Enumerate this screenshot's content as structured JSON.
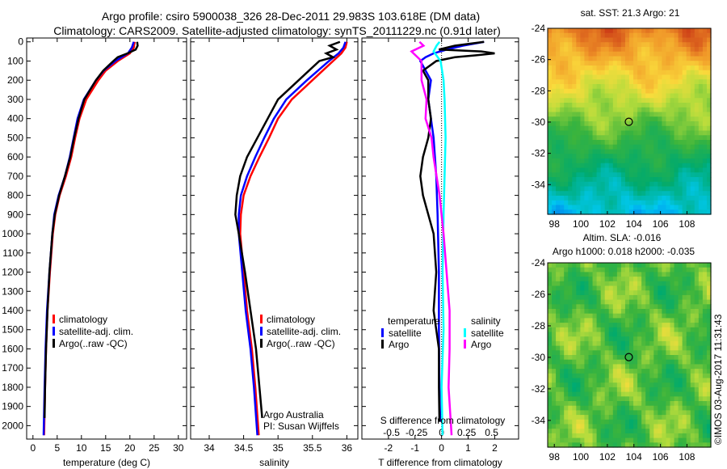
{
  "title_line1": "Argo profile: csiro 5900038_326 28-Dec-2011 29.983S 103.618E (DM data)",
  "title_line2": "Climatology: CARS2009. Satellite-adjusted climatology: synTS_20111229.nc (0.91d later)",
  "colors": {
    "climatology": "#ff0000",
    "satellite": "#0000ff",
    "argo": "#000000",
    "sal_satellite": "#00ffff",
    "sal_argo": "#ff00ff"
  },
  "chart_data": [
    {
      "type": "line",
      "id": "temperature",
      "xlabel": "temperature (deg C)",
      "xlim": [
        -1.3,
        31.7
      ],
      "ylim": [
        2070,
        -20
      ],
      "xticks": [
        "0",
        "5",
        "10",
        "15",
        "20",
        "25",
        "30"
      ],
      "xtick_values": [
        0,
        5,
        10,
        15,
        20,
        25,
        30
      ],
      "yticks": [
        "0",
        "100",
        "200",
        "300",
        "400",
        "500",
        "600",
        "700",
        "800",
        "900",
        "1000",
        "1100",
        "1200",
        "1300",
        "1400",
        "1500",
        "1600",
        "1700",
        "1800",
        "1900",
        "2000"
      ],
      "legend": [
        "climatology",
        "satellite-adj. clim.",
        "Argo(..raw -QC)"
      ],
      "series": [
        {
          "name": "climatology",
          "color": "#ff0000",
          "depth": [
            0,
            30,
            60,
            100,
            150,
            200,
            300,
            400,
            500,
            600,
            700,
            800,
            900,
            1000,
            1200,
            1400,
            1600,
            1800,
            2050
          ],
          "values": [
            21,
            20.8,
            20,
            17.5,
            15,
            13.5,
            11,
            9.6,
            8.7,
            7.9,
            6.8,
            5.5,
            4.6,
            4.1,
            3.5,
            3.0,
            2.7,
            2.5,
            2.3
          ]
        },
        {
          "name": "satellite-adj. clim.",
          "color": "#0000ff",
          "depth": [
            0,
            30,
            60,
            100,
            150,
            200,
            300,
            400,
            500,
            600,
            700,
            800,
            900,
            1000,
            1200,
            1400,
            1600,
            1800,
            2050
          ],
          "values": [
            20.8,
            20.4,
            19.6,
            17,
            14.6,
            13,
            10.5,
            9.2,
            8.4,
            7.6,
            6.6,
            5.3,
            4.4,
            4.0,
            3.4,
            2.9,
            2.6,
            2.4,
            2.2
          ]
        },
        {
          "name": "Argo(..raw -QC)",
          "color": "#000000",
          "depth": [
            0,
            20,
            40,
            60,
            80,
            100,
            150,
            200,
            300,
            400,
            500,
            600,
            700,
            800,
            900,
            1000,
            1200,
            1400,
            1600,
            1800,
            1960
          ],
          "values": [
            21.5,
            21.6,
            21.2,
            19.5,
            17.5,
            16.6,
            14.5,
            13,
            10.6,
            9.4,
            8.5,
            7.7,
            6.6,
            5.4,
            4.5,
            4.0,
            3.4,
            3.0,
            2.7,
            2.5,
            2.4
          ]
        }
      ]
    },
    {
      "type": "line",
      "id": "salinity",
      "xlabel": "salinity",
      "xlim": [
        33.73,
        36.16
      ],
      "ylim": [
        2070,
        -20
      ],
      "xticks": [
        "34",
        "34.5",
        "35",
        "35.5",
        "36"
      ],
      "xtick_values": [
        34,
        34.5,
        35,
        35.5,
        36
      ],
      "legend": [
        "climatology",
        "satellite-adj. clim.",
        "Argo(..raw -QC)"
      ],
      "annotation": [
        "Argo Australia",
        "PI: Susan Wijffels"
      ],
      "series": [
        {
          "name": "climatology",
          "color": "#ff0000",
          "depth": [
            0,
            30,
            60,
            100,
            150,
            200,
            300,
            400,
            500,
            600,
            700,
            800,
            900,
            1000,
            1200,
            1400,
            1600,
            1800,
            2050
          ],
          "values": [
            36.0,
            35.98,
            35.92,
            35.8,
            35.65,
            35.5,
            35.2,
            35.0,
            34.87,
            34.73,
            34.6,
            34.5,
            34.46,
            34.45,
            34.5,
            34.55,
            34.62,
            34.67,
            34.72
          ]
        },
        {
          "name": "satellite-adj. clim.",
          "color": "#0000ff",
          "depth": [
            0,
            30,
            60,
            100,
            150,
            200,
            300,
            400,
            500,
            600,
            700,
            800,
            900,
            1000,
            1200,
            1400,
            1600,
            1800,
            2050
          ],
          "values": [
            35.98,
            35.95,
            35.88,
            35.74,
            35.58,
            35.42,
            35.12,
            34.94,
            34.8,
            34.67,
            34.55,
            34.46,
            34.43,
            34.43,
            34.48,
            34.53,
            34.6,
            34.65,
            34.7
          ]
        },
        {
          "name": "Argo(..raw -QC)",
          "color": "#000000",
          "depth": [
            0,
            20,
            40,
            60,
            80,
            100,
            150,
            200,
            300,
            400,
            500,
            600,
            700,
            800,
            900,
            1000,
            1200,
            1400,
            1600,
            1800,
            1960
          ],
          "values": [
            35.9,
            35.75,
            35.85,
            35.7,
            35.8,
            35.6,
            35.45,
            35.3,
            35.0,
            34.85,
            34.7,
            34.55,
            34.45,
            34.4,
            34.38,
            34.43,
            34.52,
            34.6,
            34.68,
            34.73,
            34.77
          ]
        }
      ]
    },
    {
      "type": "line",
      "id": "difference",
      "xlabel": "T difference from climatology",
      "xlabel_top": "S difference from climatology",
      "xlim": [
        -3.0,
        2.9
      ],
      "xticks": [
        "-2",
        "-1",
        "0",
        "1",
        "2"
      ],
      "xtick_values": [
        -2,
        -1,
        0,
        1,
        2
      ],
      "s_xticks": [
        "-0.5",
        "-0.25",
        "0",
        "0.25",
        "0.5"
      ],
      "s_xtick_values": [
        -0.5,
        -0.25,
        0,
        0.25,
        0.5
      ],
      "legend": {
        "temperature_title": "temperature",
        "salinity_title": "salinity",
        "temp_satellite": "satellite",
        "temp_argo": "Argo",
        "sal_satellite": "satellite",
        "sal_argo": "Argo"
      },
      "series": [
        {
          "name": "temperature satellite",
          "color": "#0000ff",
          "depth": [
            0,
            20,
            40,
            60,
            80,
            100,
            150,
            200,
            300,
            400,
            500,
            700,
            900,
            1200,
            1500,
            1800,
            1980
          ],
          "values": [
            1.6,
            0.8,
            0.2,
            -0.3,
            -0.6,
            -0.8,
            -0.6,
            -0.4,
            -0.5,
            -0.4,
            -0.3,
            -0.2,
            -0.15,
            -0.1,
            -0.1,
            -0.08,
            -0.05
          ]
        },
        {
          "name": "temperature Argo",
          "color": "#000000",
          "depth": [
            0,
            20,
            40,
            50,
            60,
            70,
            80,
            100,
            150,
            200,
            300,
            400,
            500,
            600,
            700,
            800,
            900,
            1000,
            1200,
            1400,
            1500,
            1600,
            1800,
            1980
          ],
          "values": [
            1.6,
            0.5,
            -0.1,
            1.5,
            2.0,
            1.3,
            0.5,
            -0.2,
            -0.7,
            -0.5,
            -0.5,
            -0.4,
            -0.5,
            -0.7,
            -0.8,
            -0.7,
            -0.5,
            -0.3,
            -0.2,
            -0.3,
            -0.2,
            -0.1,
            -0.1,
            -0.08
          ]
        },
        {
          "name": "salinity satellite",
          "color": "#00ffff",
          "depth": [
            0,
            20,
            50,
            100,
            200,
            300,
            500,
            700,
            900,
            1200,
            1500,
            1800,
            2050
          ],
          "values": [
            -0.02,
            -0.05,
            -0.08,
            -0.01,
            0.02,
            0.03,
            0.04,
            0.03,
            0.02,
            0.01,
            0.02,
            0.0,
            0.01
          ]
        },
        {
          "name": "salinity Argo",
          "color": "#ff00ff",
          "depth": [
            0,
            20,
            50,
            100,
            200,
            300,
            400,
            500,
            600,
            700,
            800,
            900,
            1000,
            1200,
            1400,
            1600,
            1800,
            2050
          ],
          "values": [
            -0.22,
            -0.18,
            -0.3,
            -0.2,
            -0.2,
            -0.15,
            -0.16,
            -0.1,
            -0.08,
            -0.05,
            -0.02,
            0.0,
            0.02,
            0.05,
            0.08,
            0.08,
            0.07,
            0.1
          ]
        }
      ]
    },
    {
      "type": "heatmap",
      "id": "sst-map",
      "title": "sat. SST: 21.3 Argo: 21",
      "xlim": [
        97.5,
        109.8
      ],
      "ylim": [
        -35.9,
        -24
      ],
      "xticks": [
        "98",
        "100",
        "102",
        "104",
        "106",
        "108"
      ],
      "xtick_values": [
        98,
        100,
        102,
        104,
        106,
        108
      ],
      "yticks": [
        "-24",
        "-26",
        "-28",
        "-30",
        "-32",
        "-34"
      ],
      "ytick_values": [
        -24,
        -26,
        -28,
        -30,
        -32,
        -34
      ],
      "marker": {
        "lon": 103.618,
        "lat": -29.983
      }
    },
    {
      "type": "heatmap",
      "id": "sla-map",
      "title": "Altim. SLA: -0.016",
      "subtitle": "Argo h1000: 0.018 h2000: -0.035",
      "xlim": [
        97.5,
        109.8
      ],
      "ylim": [
        -35.7,
        -24
      ],
      "xticks": [
        "98",
        "100",
        "102",
        "104",
        "106",
        "108"
      ],
      "xtick_values": [
        98,
        100,
        102,
        104,
        106,
        108
      ],
      "yticks": [
        "-24",
        "-26",
        "-28",
        "-30",
        "-32",
        "-34"
      ],
      "ytick_values": [
        -24,
        -26,
        -28,
        -30,
        -32,
        -34
      ],
      "marker": {
        "lon": 103.618,
        "lat": -29.983
      }
    }
  ],
  "copyright": "©IMOS 03-Aug-2017 11:31:43"
}
